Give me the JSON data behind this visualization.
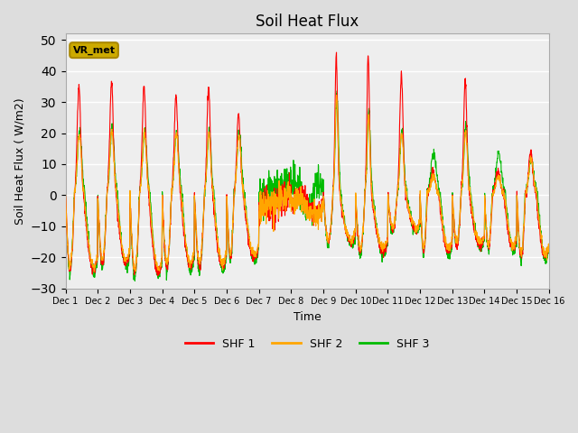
{
  "title": "Soil Heat Flux",
  "xlabel": "Time",
  "ylabel": "Soil Heat Flux ( W/m2)",
  "ylim": [
    -30,
    52
  ],
  "yticks": [
    -30,
    -20,
    -10,
    0,
    10,
    20,
    30,
    40,
    50
  ],
  "legend_labels": [
    "SHF 1",
    "SHF 2",
    "SHF 3"
  ],
  "legend_colors": [
    "#ff0000",
    "#ffa500",
    "#00bb00"
  ],
  "annotation_text": "VR_met",
  "annotation_bg": "#ccaa00",
  "annotation_edge": "#aa8800",
  "bg_color": "#dddddd",
  "plot_bg_color": "#eeeeee",
  "days": 15,
  "n_per_day": 144,
  "title_fontsize": 12,
  "xtick_labels": [
    "Dec 1",
    "Dec 2",
    "Dec 3",
    "Dec 4",
    "Dec 5",
    "Dec 6",
    "Dec 7",
    "Dec 8",
    "Dec 9",
    "Dec 10",
    "Dec 11",
    "Dec 12",
    "Dec 13",
    "Dec 14",
    "Dec 15",
    "Dec 16"
  ],
  "figsize": [
    6.4,
    4.8
  ],
  "dpi": 100
}
